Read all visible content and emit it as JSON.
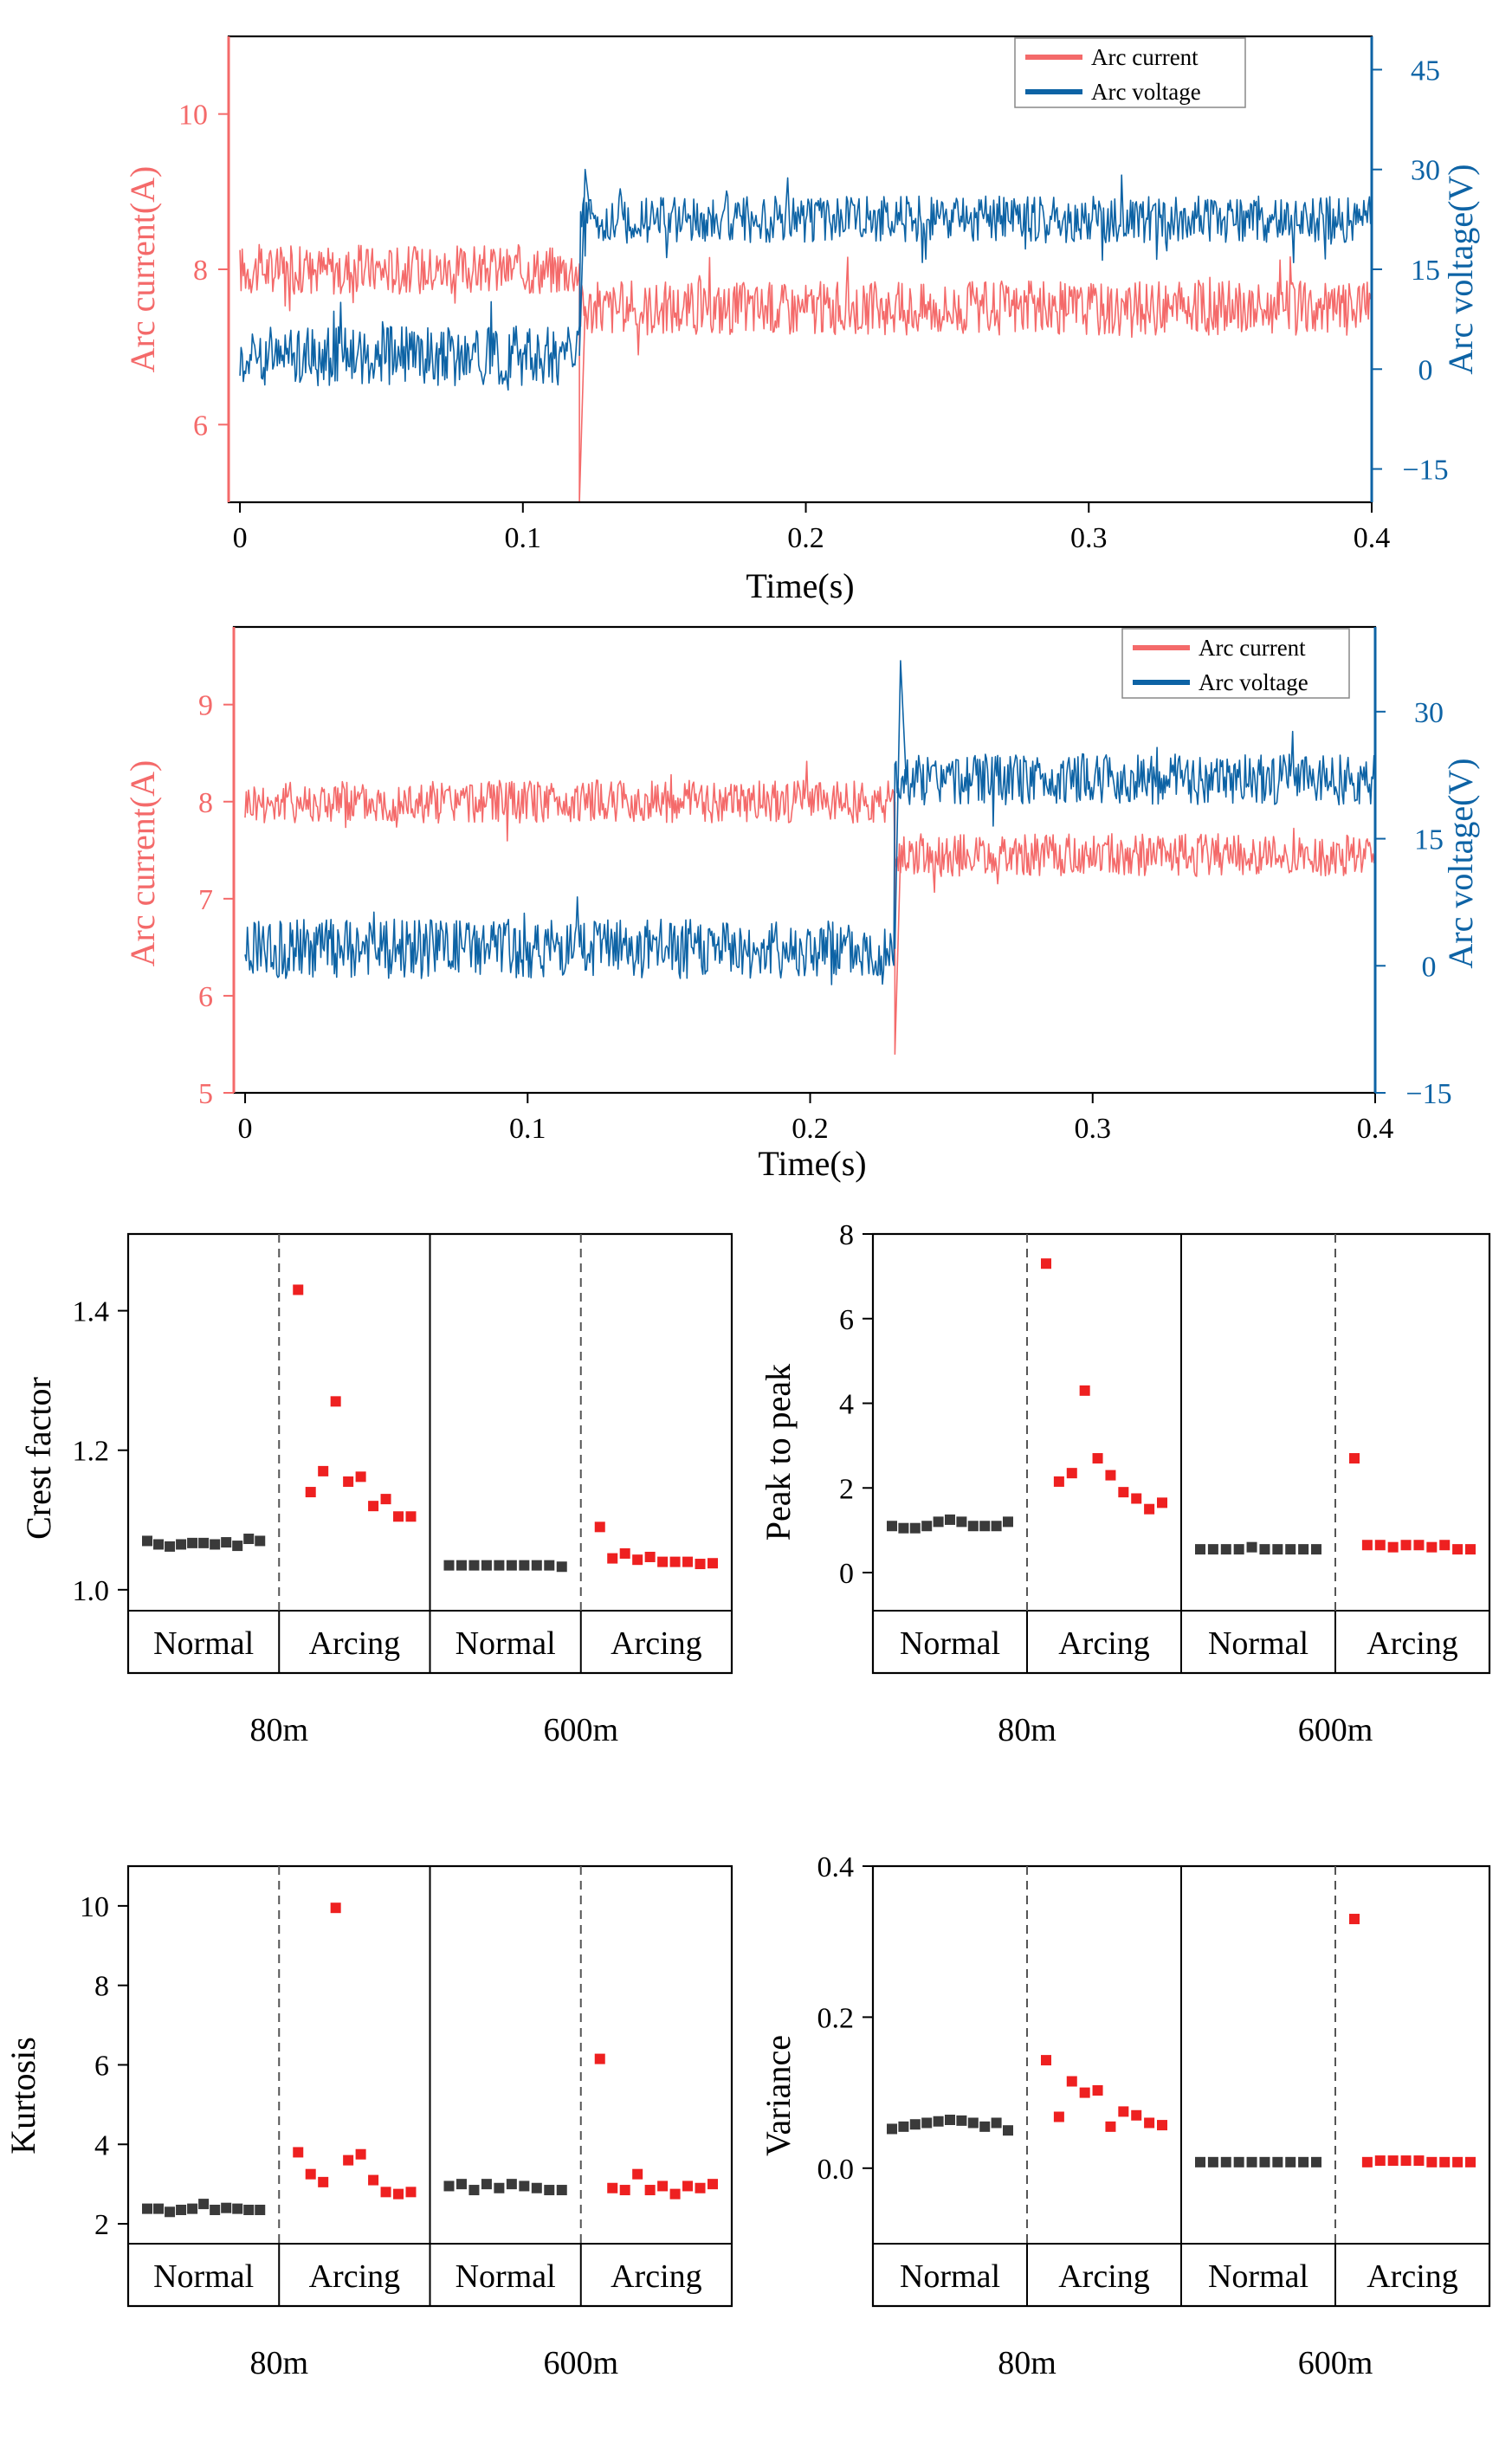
{
  "colors": {
    "current": "#f46a6a",
    "voltage": "#0d63a5",
    "normal_marker": "#3a3a3a",
    "arcing_marker": "#ee2020"
  },
  "chart_data": [
    {
      "id": "waveform-80m",
      "type": "line",
      "title": "",
      "xlabel": "Time(s)",
      "ylabel_left": "Arc current(A)",
      "ylabel_right": "Arc voltage(V)",
      "xlim": [
        -0.004,
        0.4
      ],
      "ylim_left": [
        5,
        11
      ],
      "ylim_right": [
        -20,
        50
      ],
      "xticks": [
        "0",
        "0.1",
        "0.2",
        "0.3",
        "0.4"
      ],
      "yticks_left": [
        "6",
        "8",
        "10"
      ],
      "yticks_right": [
        "−15",
        "0",
        "15",
        "30",
        "45"
      ],
      "legend": [
        "Arc current",
        "Arc voltage"
      ],
      "legend_position": "top-right",
      "transition_time": 0.12,
      "series": [
        {
          "name": "Arc current",
          "axis": "left",
          "before_mean": 8.0,
          "before_band": 0.32,
          "after_mean": 7.5,
          "after_band": 0.35
        },
        {
          "name": "Arc voltage",
          "axis": "right",
          "before_mean": 2.0,
          "before_band": 4.5,
          "after_mean": 22.5,
          "after_band": 3.5
        }
      ]
    },
    {
      "id": "waveform-600m",
      "type": "line",
      "title": "",
      "xlabel": "Time(s)",
      "ylabel_left": "Arc current(A)",
      "ylabel_right": "Arc voltage(V)",
      "xlim": [
        -0.004,
        0.4
      ],
      "ylim_left": [
        5,
        9.8
      ],
      "ylim_right": [
        -15,
        40
      ],
      "xticks": [
        "0",
        "0.1",
        "0.2",
        "0.3",
        "0.4"
      ],
      "yticks_left": [
        "5",
        "6",
        "7",
        "8",
        "9"
      ],
      "yticks_right": [
        "−15",
        "0",
        "15",
        "30"
      ],
      "legend": [
        "Arc current",
        "Arc voltage"
      ],
      "legend_position": "top-right",
      "transition_time": 0.23,
      "series": [
        {
          "name": "Arc current",
          "axis": "left",
          "before_mean": 8.0,
          "before_band": 0.22,
          "after_mean": 7.45,
          "after_band": 0.22
        },
        {
          "name": "Arc voltage",
          "axis": "right",
          "before_mean": 2.0,
          "before_band": 3.5,
          "after_mean": 22.0,
          "after_band": 3.0
        }
      ]
    },
    {
      "id": "crest-factor",
      "type": "scatter",
      "title": "",
      "xlabel": "",
      "ylabel": "Crest factor",
      "ylim": [
        0.97,
        1.51
      ],
      "yticks": [
        "1.0",
        "1.2",
        "1.4"
      ],
      "ytick_values": [
        1.0,
        1.2,
        1.4
      ],
      "categories": [
        "Normal",
        "Arcing",
        "Normal",
        "Arcing"
      ],
      "groups": [
        "80m",
        "600m"
      ],
      "series": [
        {
          "name": "80m Normal",
          "values": [
            1.07,
            1.065,
            1.062,
            1.065,
            1.067,
            1.067,
            1.065,
            1.068,
            1.063,
            1.073,
            1.07
          ]
        },
        {
          "name": "80m Arcing",
          "values": [
            1.43,
            1.14,
            1.17,
            1.27,
            1.155,
            1.162,
            1.12,
            1.13,
            1.105,
            1.105
          ]
        },
        {
          "name": "600m Normal",
          "values": [
            1.035,
            1.035,
            1.035,
            1.035,
            1.035,
            1.035,
            1.035,
            1.035,
            1.035,
            1.033
          ]
        },
        {
          "name": "600m Arcing",
          "values": [
            1.09,
            1.045,
            1.052,
            1.043,
            1.047,
            1.04,
            1.04,
            1.04,
            1.037,
            1.038
          ]
        }
      ]
    },
    {
      "id": "peak-to-peak",
      "type": "scatter",
      "title": "",
      "xlabel": "",
      "ylabel": "Peak to peak",
      "ylim": [
        -0.9,
        8.0
      ],
      "yticks": [
        "0",
        "2",
        "4",
        "6",
        "8"
      ],
      "ytick_values": [
        0,
        2,
        4,
        6,
        8
      ],
      "categories": [
        "Normal",
        "Arcing",
        "Normal",
        "Arcing"
      ],
      "groups": [
        "80m",
        "600m"
      ],
      "series": [
        {
          "name": "80m Normal",
          "values": [
            1.1,
            1.05,
            1.05,
            1.1,
            1.2,
            1.25,
            1.2,
            1.1,
            1.1,
            1.1,
            1.2
          ]
        },
        {
          "name": "80m Arcing",
          "values": [
            7.3,
            2.15,
            2.35,
            4.3,
            2.7,
            2.3,
            1.9,
            1.75,
            1.5,
            1.65
          ]
        },
        {
          "name": "600m Normal",
          "values": [
            0.55,
            0.55,
            0.55,
            0.55,
            0.6,
            0.55,
            0.55,
            0.55,
            0.55,
            0.55
          ]
        },
        {
          "name": "600m Arcing",
          "values": [
            2.7,
            0.65,
            0.65,
            0.6,
            0.65,
            0.65,
            0.6,
            0.65,
            0.55,
            0.55
          ]
        }
      ]
    },
    {
      "id": "kurtosis",
      "type": "scatter",
      "title": "",
      "xlabel": "",
      "ylabel": "Kurtosis",
      "ylim": [
        1.5,
        11.0
      ],
      "yticks": [
        "2",
        "4",
        "6",
        "8",
        "10"
      ],
      "ytick_values": [
        2,
        4,
        6,
        8,
        10
      ],
      "categories": [
        "Normal",
        "Arcing",
        "Normal",
        "Arcing"
      ],
      "groups": [
        "80m",
        "600m"
      ],
      "series": [
        {
          "name": "80m Normal",
          "values": [
            2.38,
            2.38,
            2.3,
            2.35,
            2.38,
            2.5,
            2.35,
            2.4,
            2.38,
            2.35,
            2.35
          ]
        },
        {
          "name": "80m Arcing",
          "values": [
            3.8,
            3.25,
            3.05,
            9.95,
            3.6,
            3.75,
            3.1,
            2.8,
            2.75,
            2.8
          ]
        },
        {
          "name": "600m Normal",
          "values": [
            2.95,
            3.0,
            2.85,
            3.0,
            2.9,
            3.0,
            2.95,
            2.9,
            2.85,
            2.85
          ]
        },
        {
          "name": "600m Arcing",
          "values": [
            6.15,
            2.9,
            2.85,
            3.25,
            2.85,
            2.95,
            2.75,
            2.95,
            2.9,
            3.0
          ]
        }
      ]
    },
    {
      "id": "variance",
      "type": "scatter",
      "title": "",
      "xlabel": "",
      "ylabel": "Variance",
      "ylim": [
        -0.1,
        0.4
      ],
      "yticks": [
        "0.0",
        "0.2",
        "0.4"
      ],
      "ytick_values": [
        0.0,
        0.2,
        0.4
      ],
      "categories": [
        "Normal",
        "Arcing",
        "Normal",
        "Arcing"
      ],
      "groups": [
        "80m",
        "600m"
      ],
      "series": [
        {
          "name": "80m Normal",
          "values": [
            0.052,
            0.055,
            0.058,
            0.06,
            0.062,
            0.064,
            0.063,
            0.06,
            0.055,
            0.06,
            0.05
          ]
        },
        {
          "name": "80m Arcing",
          "values": [
            0.143,
            0.068,
            0.115,
            0.1,
            0.103,
            0.055,
            0.075,
            0.07,
            0.06,
            0.057
          ]
        },
        {
          "name": "600m Normal",
          "values": [
            0.008,
            0.008,
            0.008,
            0.008,
            0.008,
            0.008,
            0.008,
            0.008,
            0.008,
            0.008
          ]
        },
        {
          "name": "600m Arcing",
          "values": [
            0.33,
            0.008,
            0.01,
            0.01,
            0.01,
            0.01,
            0.008,
            0.008,
            0.008,
            0.008
          ]
        }
      ]
    }
  ]
}
